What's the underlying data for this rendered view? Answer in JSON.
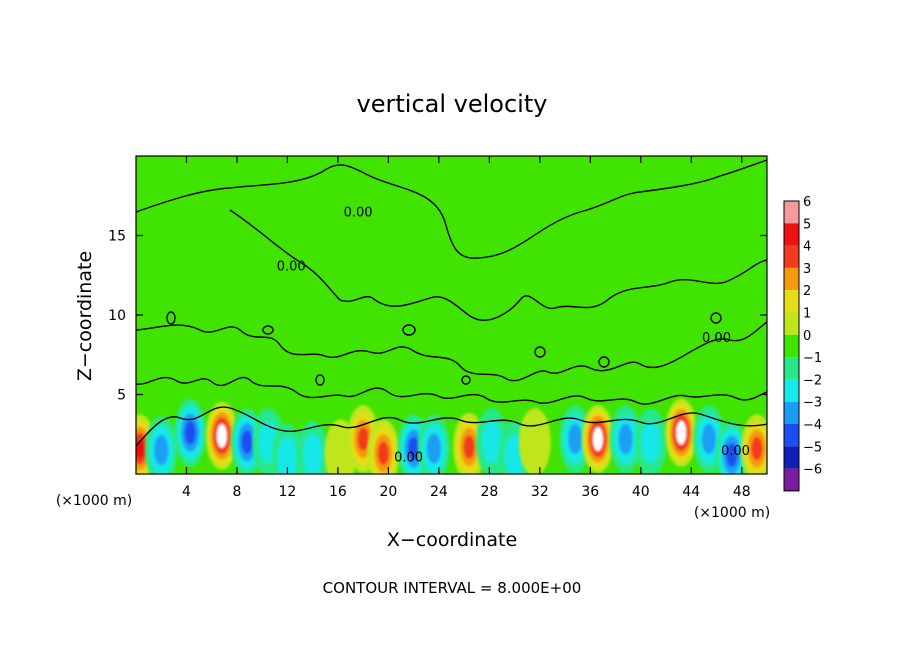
{
  "chart_data": {
    "type": "heatmap",
    "title": "vertical velocity",
    "xlabel": "X−coordinate",
    "ylabel": "Z−coordinate",
    "x_unit": "(×1000 m)",
    "x_unit_right": "(×1000 m)",
    "xlim": [
      0,
      50
    ],
    "ylim": [
      0,
      20
    ],
    "x_ticks": [
      4,
      8,
      12,
      16,
      20,
      24,
      28,
      32,
      36,
      40,
      44,
      48
    ],
    "x_tick_labels": [
      "4",
      "8",
      "12",
      "16",
      "20",
      "24",
      "28",
      "32",
      "36",
      "40",
      "44",
      "48"
    ],
    "y_ticks": [
      5,
      10,
      15
    ],
    "y_tick_labels": [
      "5",
      "10",
      "15"
    ],
    "colorbar": {
      "levels": [
        6,
        5,
        4,
        3,
        2,
        1,
        0,
        -1,
        -2,
        -3,
        -4,
        -5,
        -6
      ],
      "labels": [
        "6",
        "5",
        "4",
        "3",
        "2",
        "1",
        "0",
        "−1",
        "−2",
        "−3",
        "−4",
        "−5",
        "−6"
      ],
      "colors": [
        "#f49a9a",
        "#ee1111",
        "#f23a1c",
        "#f59a0e",
        "#e6dd18",
        "#bfe61b",
        "#41e300",
        "#28e88a",
        "#19e8e8",
        "#1a9ef5",
        "#1a4ef2",
        "#0f1fb8",
        "#7d1aa0"
      ]
    },
    "contour_labels": [
      {
        "text": "0.00",
        "x": 17.6,
        "y": 16.2
      },
      {
        "text": "0.00",
        "x": 12.3,
        "y": 12.8
      },
      {
        "text": "0.00",
        "x": 21.6,
        "y": 0.8
      },
      {
        "text": "0.00",
        "x": 47.5,
        "y": 1.2
      },
      {
        "text": "0.00",
        "x": 46.0,
        "y": 8.3
      }
    ],
    "cells": [
      {
        "x": 0.3,
        "z": 1.6,
        "w": 5
      },
      {
        "x": 2.0,
        "z": 1.5,
        "w": -3
      },
      {
        "x": 4.3,
        "z": 2.6,
        "w": -4
      },
      {
        "x": 6.8,
        "z": 2.4,
        "w": 6
      },
      {
        "x": 8.8,
        "z": 2.0,
        "w": -4
      },
      {
        "x": 10.5,
        "z": 2.0,
        "w": -2
      },
      {
        "x": 12.0,
        "z": 1.0,
        "w": -2
      },
      {
        "x": 14.0,
        "z": 1.2,
        "w": -2
      },
      {
        "x": 16.2,
        "z": 1.3,
        "w": 1
      },
      {
        "x": 18.0,
        "z": 2.2,
        "w": 4
      },
      {
        "x": 19.6,
        "z": 1.3,
        "w": 4
      },
      {
        "x": 22.0,
        "z": 1.6,
        "w": -4
      },
      {
        "x": 23.6,
        "z": 1.6,
        "w": -3
      },
      {
        "x": 26.4,
        "z": 1.7,
        "w": 4
      },
      {
        "x": 28.2,
        "z": 2.0,
        "w": -2
      },
      {
        "x": 30.0,
        "z": 1.2,
        "w": -2
      },
      {
        "x": 31.6,
        "z": 2.0,
        "w": 1
      },
      {
        "x": 34.8,
        "z": 2.2,
        "w": -3
      },
      {
        "x": 36.6,
        "z": 2.2,
        "w": 6
      },
      {
        "x": 38.8,
        "z": 2.2,
        "w": -3
      },
      {
        "x": 40.8,
        "z": 2.0,
        "w": -2
      },
      {
        "x": 43.2,
        "z": 2.6,
        "w": 6
      },
      {
        "x": 45.4,
        "z": 2.2,
        "w": -3
      },
      {
        "x": 47.2,
        "z": 1.2,
        "w": -4
      },
      {
        "x": 49.2,
        "z": 1.6,
        "w": 4
      }
    ],
    "footer": "CONTOUR INTERVAL = 8.000E+00"
  }
}
